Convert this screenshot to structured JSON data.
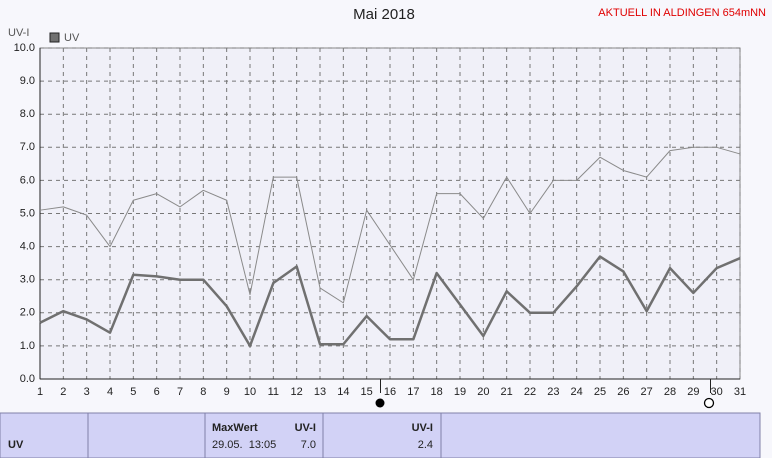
{
  "chart_data": {
    "type": "line",
    "title": "Mai 2018",
    "y_label": "UV-I",
    "x": [
      1,
      2,
      3,
      4,
      5,
      6,
      7,
      8,
      9,
      10,
      11,
      12,
      13,
      14,
      15,
      16,
      17,
      18,
      19,
      20,
      21,
      22,
      23,
      24,
      25,
      26,
      27,
      28,
      29,
      30,
      31
    ],
    "xlim": [
      1,
      31
    ],
    "xticks": [
      1,
      2,
      3,
      4,
      5,
      6,
      7,
      8,
      9,
      10,
      11,
      12,
      13,
      14,
      15,
      16,
      17,
      18,
      19,
      20,
      21,
      22,
      23,
      24,
      25,
      26,
      27,
      28,
      29,
      30,
      31
    ],
    "ylim": [
      0,
      10
    ],
    "yticks": [
      {
        "value": 0,
        "label": "0.0"
      },
      {
        "value": 1,
        "label": "1.0"
      },
      {
        "value": 2,
        "label": "2.0"
      },
      {
        "value": 3,
        "label": "3.0"
      },
      {
        "value": 4,
        "label": "4.0"
      },
      {
        "value": 5,
        "label": "5.0"
      },
      {
        "value": 6,
        "label": "6.0"
      },
      {
        "value": 7,
        "label": "7.0"
      },
      {
        "value": 8,
        "label": "8.0"
      },
      {
        "value": 9,
        "label": "9.0"
      },
      {
        "value": 10,
        "label": "10.0"
      }
    ],
    "grid": true,
    "series": [
      {
        "name": "UV",
        "color": "#707070",
        "values": [
          1.7,
          2.05,
          1.8,
          1.4,
          3.15,
          3.1,
          3.0,
          3.0,
          2.2,
          1.0,
          2.9,
          3.4,
          1.05,
          1.05,
          1.9,
          1.2,
          1.2,
          3.2,
          2.25,
          1.3,
          2.65,
          2.0,
          2.0,
          2.8,
          3.7,
          3.25,
          2.05,
          3.35,
          2.6,
          3.35,
          3.65
        ]
      },
      {
        "color": "#8a8a8a",
        "values": [
          5.1,
          5.2,
          4.95,
          4.0,
          5.4,
          5.6,
          5.2,
          5.7,
          5.4,
          2.55,
          6.1,
          6.1,
          2.75,
          2.3,
          5.1,
          4.05,
          3.0,
          5.6,
          5.6,
          4.85,
          6.1,
          5.0,
          6.0,
          6.0,
          6.7,
          6.3,
          6.1,
          6.9,
          7.0,
          7.0,
          6.8
        ]
      }
    ]
  },
  "header": {
    "station": "AKTUELL IN ALDINGEN 654mNN"
  },
  "table": {
    "label": "UV",
    "max_title": "MaxWert",
    "max_unit": "UV-I",
    "max_time": "29.05.  13:05",
    "max_value": "7.0",
    "current_unit": "UV-I",
    "current_value": "2.4"
  }
}
